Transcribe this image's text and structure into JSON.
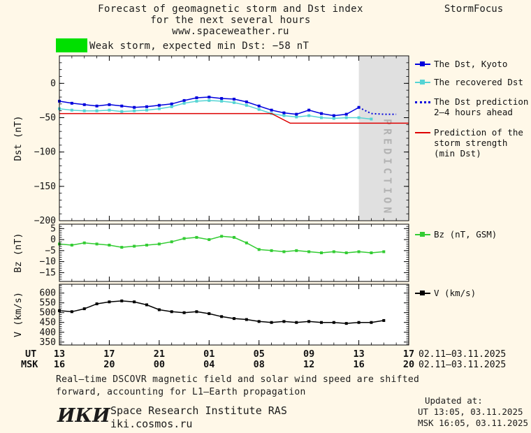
{
  "title": {
    "line1": "Forecast of geomagnetic storm and Dst index",
    "line2": "for the next several hours",
    "line3": "www.spaceweather.ru",
    "brand": "StormFocus"
  },
  "alert": {
    "text": "Weak storm, expected min Dst: −58 nT",
    "color": "#00e000"
  },
  "legend": {
    "entries": [
      {
        "label1": "The Dst, Kyoto",
        "color": "#0000dd",
        "style": "marker"
      },
      {
        "label1": "The recovered Dst",
        "color": "#55d4d4",
        "style": "marker"
      },
      {
        "label1": "The Dst prediction",
        "label2": "2–4 hours ahead",
        "color": "#0000dd",
        "style": "dotted"
      },
      {
        "label1": "Prediction of the",
        "label2": "storm strength",
        "label3": "(min Dst)",
        "color": "#dd0000",
        "style": "solid"
      },
      {
        "label1": "Bz (nT, GSM)",
        "color": "#33cc33",
        "style": "marker"
      },
      {
        "label1": "V (km/s)",
        "color": "#000000",
        "style": "marker"
      }
    ]
  },
  "xaxis": {
    "ut_label": "UT",
    "msk_label": "MSK",
    "xlim": [
      0,
      28
    ],
    "tick_hours": [
      0,
      4,
      8,
      12,
      16,
      20,
      24,
      28
    ],
    "ut_ticks": [
      "13",
      "17",
      "21",
      "01",
      "05",
      "09",
      "13",
      "17"
    ],
    "msk_ticks": [
      "16",
      "20",
      "00",
      "04",
      "08",
      "12",
      "16",
      "20"
    ],
    "ut_date": "02.11–03.11.2025",
    "msk_date": "02.11–03.11.2025"
  },
  "footer": {
    "note_line1": "Real–time DSCOVR magnetic field and solar wind speed are shifted",
    "note_line2": "forward, accounting for L1–Earth propagation",
    "updated_label": "Updated at:",
    "updated_ut": "UT  13:05, 03.11.2025",
    "updated_msk": "MSK 16:05, 03.11.2025",
    "logo": "ИКИ",
    "institute": "Space Research Institute RAS",
    "site": "iki.cosmos.ru"
  },
  "chart_data": [
    {
      "id": "dst",
      "type": "line",
      "ylabel": "Dst (nT)",
      "ylim": [
        -200,
        40
      ],
      "yticks": [
        0,
        -50,
        -100,
        -150,
        -200
      ],
      "yminor": 10,
      "prediction_band": [
        24,
        28
      ],
      "prediction_label": "PREDICTION",
      "series": [
        {
          "id": "dst-kyoto",
          "name": "The Dst, Kyoto",
          "color": "#0000dd",
          "marker": true,
          "dash": false,
          "x": [
            0,
            1,
            2,
            3,
            4,
            5,
            6,
            7,
            8,
            9,
            10,
            11,
            12,
            13,
            14,
            15,
            16,
            17,
            18,
            19,
            20,
            21,
            22,
            23,
            24
          ],
          "y": [
            -26,
            -29,
            -31,
            -33,
            -31,
            -33,
            -35,
            -34,
            -32,
            -30,
            -25,
            -21,
            -20,
            -22,
            -23,
            -27,
            -33,
            -39,
            -43,
            -45,
            -39,
            -44,
            -47,
            -45,
            -35
          ]
        },
        {
          "id": "dst-recovered",
          "name": "The recovered Dst",
          "color": "#55d4d4",
          "marker": true,
          "dash": false,
          "x": [
            0,
            1,
            2,
            3,
            4,
            5,
            6,
            7,
            8,
            9,
            10,
            11,
            12,
            13,
            14,
            15,
            16,
            17,
            18,
            19,
            20,
            21,
            22,
            23,
            24,
            25
          ],
          "y": [
            -37,
            -39,
            -40,
            -40,
            -39,
            -41,
            -40,
            -39,
            -37,
            -34,
            -29,
            -26,
            -25,
            -26,
            -28,
            -32,
            -38,
            -44,
            -47,
            -49,
            -47,
            -50,
            -51,
            -50,
            -50,
            -52
          ]
        },
        {
          "id": "dst-prediction",
          "name": "The Dst prediction 2–4 hours ahead",
          "color": "#0000dd",
          "marker": false,
          "dash": true,
          "x": [
            24,
            25,
            26,
            27
          ],
          "y": [
            -35,
            -44,
            -45,
            -45
          ]
        },
        {
          "id": "storm-strength",
          "name": "Prediction of the storm strength (min Dst)",
          "color": "#dd0000",
          "marker": false,
          "dash": false,
          "x": [
            0,
            17,
            18.5,
            28
          ],
          "y": [
            -44,
            -44,
            -58,
            -58
          ]
        }
      ]
    },
    {
      "id": "bz",
      "type": "line",
      "ylabel": "Bz (nT)",
      "ylim": [
        -19,
        7
      ],
      "yticks": [
        5,
        0,
        -5,
        -10,
        -15
      ],
      "yminor": 1,
      "series": [
        {
          "id": "bz",
          "name": "Bz (nT, GSM)",
          "color": "#33cc33",
          "marker": true,
          "dash": false,
          "x": [
            0,
            1,
            2,
            3,
            4,
            5,
            6,
            7,
            8,
            9,
            10,
            11,
            12,
            13,
            14,
            15,
            16,
            17,
            18,
            19,
            20,
            21,
            22,
            23,
            24,
            25,
            26
          ],
          "y": [
            -2,
            -2.5,
            -1.5,
            -2,
            -2.5,
            -3.5,
            -3,
            -2.5,
            -2,
            -1,
            0.5,
            1,
            0,
            1.5,
            1,
            -1.5,
            -4.5,
            -5,
            -5.5,
            -5,
            -5.5,
            -6,
            -5.5,
            -6,
            -5.5,
            -6,
            -5.5
          ]
        }
      ]
    },
    {
      "id": "v",
      "type": "line",
      "ylabel": "V (km/s)",
      "ylim": [
        335,
        645
      ],
      "yticks": [
        600,
        550,
        500,
        450,
        400,
        350
      ],
      "yminor": 10,
      "series": [
        {
          "id": "v",
          "name": "V (km/s)",
          "color": "#000000",
          "marker": true,
          "dash": false,
          "x": [
            0,
            1,
            2,
            3,
            4,
            5,
            6,
            7,
            8,
            9,
            10,
            11,
            12,
            13,
            14,
            15,
            16,
            17,
            18,
            19,
            20,
            21,
            22,
            23,
            24,
            25,
            26
          ],
          "y": [
            510,
            505,
            520,
            545,
            555,
            560,
            555,
            540,
            515,
            505,
            500,
            505,
            495,
            480,
            470,
            465,
            455,
            450,
            455,
            450,
            455,
            450,
            450,
            445,
            450,
            450,
            460
          ]
        }
      ]
    }
  ]
}
